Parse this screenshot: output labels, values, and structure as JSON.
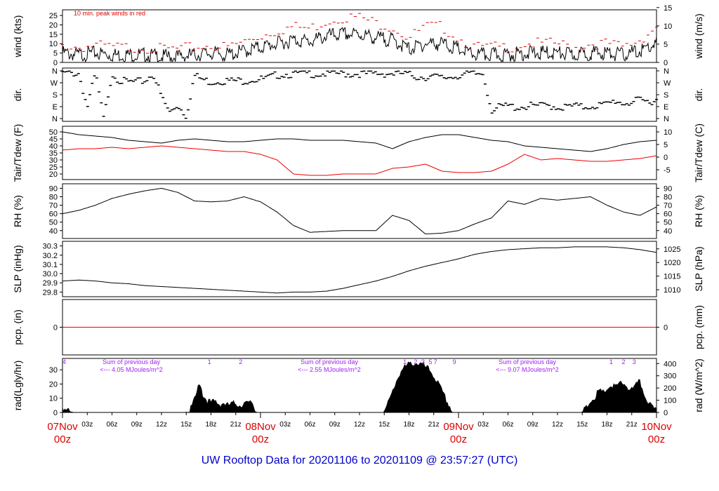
{
  "title": "UW Rooftop Data for 20201106  to  20201109 @ 23:57:27  (UTC)",
  "colors": {
    "primary": "#000000",
    "peak": "#dd0000",
    "dewpoint": "#ee0000",
    "annotation": "#a020f0",
    "title": "#0000cc"
  },
  "x_axis": {
    "hours": [
      0,
      72
    ],
    "day_labels": [
      {
        "hour": 0,
        "date": "07Nov",
        "time": "00z"
      },
      {
        "hour": 24,
        "date": "08Nov",
        "time": "00z"
      },
      {
        "hour": 48,
        "date": "09Nov",
        "time": "00z"
      },
      {
        "hour": 72,
        "date": "10Nov",
        "time": "00z"
      }
    ],
    "hour_ticks": [
      {
        "hour": 3,
        "label": "03z"
      },
      {
        "hour": 6,
        "label": "06z"
      },
      {
        "hour": 9,
        "label": "09z"
      },
      {
        "hour": 12,
        "label": "12z"
      },
      {
        "hour": 15,
        "label": "15z"
      },
      {
        "hour": 18,
        "label": "18z"
      },
      {
        "hour": 21,
        "label": "21z"
      },
      {
        "hour": 27,
        "label": "03z"
      },
      {
        "hour": 30,
        "label": "06z"
      },
      {
        "hour": 33,
        "label": "09z"
      },
      {
        "hour": 36,
        "label": "12z"
      },
      {
        "hour": 39,
        "label": "15z"
      },
      {
        "hour": 42,
        "label": "18z"
      },
      {
        "hour": 45,
        "label": "21z"
      },
      {
        "hour": 51,
        "label": "03z"
      },
      {
        "hour": 54,
        "label": "06z"
      },
      {
        "hour": 57,
        "label": "09z"
      },
      {
        "hour": 60,
        "label": "12z"
      },
      {
        "hour": 63,
        "label": "15z"
      },
      {
        "hour": 66,
        "label": "18z"
      },
      {
        "hour": 69,
        "label": "21z"
      }
    ]
  },
  "chart_data": [
    {
      "type": "line",
      "panel": "wind",
      "ylabel": "wind (kts)",
      "y2label": "wind (m/s)",
      "ylim": [
        0,
        28
      ],
      "yticks": [
        "0",
        "5",
        "10",
        "15",
        "20",
        "25"
      ],
      "y2ticks": [
        "0",
        "5",
        "10",
        "15"
      ],
      "note": "10 min. peak winds in red",
      "series": [
        {
          "hours": [
            0,
            2,
            4,
            6,
            8,
            10,
            12,
            14,
            16,
            18,
            20,
            22,
            24,
            26,
            28,
            30,
            32,
            34,
            36,
            38,
            40,
            42,
            44,
            46,
            48,
            50,
            52,
            54,
            56,
            58,
            60,
            62,
            64,
            66,
            68,
            70,
            72
          ],
          "values": [
            7,
            6,
            7,
            6,
            6,
            6,
            5,
            5,
            6,
            7,
            6,
            8,
            10,
            12,
            14,
            13,
            16,
            17,
            17,
            15,
            14,
            9,
            12,
            12,
            9,
            6,
            6,
            6,
            7,
            7,
            7,
            6,
            7,
            7,
            6,
            8,
            12
          ]
        }
      ],
      "peak_gusts": {
        "hours": [
          0,
          2,
          4,
          6,
          8,
          10,
          12,
          14,
          16,
          18,
          20,
          22,
          24,
          26,
          28,
          30,
          32,
          34,
          36,
          38,
          40,
          42,
          44,
          46,
          48,
          50,
          52,
          54,
          56,
          58,
          60,
          62,
          64,
          66,
          68,
          70,
          72
        ],
        "values": [
          10,
          9,
          10,
          9,
          9,
          9,
          8,
          8,
          9,
          10,
          9,
          12,
          15,
          18,
          20,
          19,
          23,
          25,
          25,
          22,
          20,
          14,
          20,
          20,
          14,
          9,
          9,
          9,
          11,
          11,
          11,
          9,
          11,
          11,
          9,
          13,
          20
        ]
      }
    },
    {
      "type": "scatter",
      "panel": "dir",
      "ylabel": "dir.",
      "y2label": "dir.",
      "ylim": [
        0,
        360
      ],
      "yticks": [
        "N",
        "E",
        "S",
        "W",
        "N"
      ],
      "y2ticks": [
        "N",
        "E",
        "S",
        "W",
        "N"
      ],
      "series": [
        {
          "hours": [
            0,
            1,
            2,
            3,
            4,
            5,
            6,
            7,
            8,
            9,
            10,
            11,
            12,
            13,
            14,
            15,
            16,
            17,
            18,
            19,
            20,
            21,
            22,
            23,
            24,
            25,
            26,
            27,
            28,
            29,
            30,
            31,
            32,
            33,
            34,
            35,
            36,
            37,
            38,
            39,
            40,
            41,
            42,
            43,
            44,
            45,
            46,
            47,
            48,
            49,
            50,
            51,
            52,
            53,
            54,
            55,
            56,
            57,
            58,
            59,
            60,
            61,
            62,
            63,
            64,
            65,
            66,
            67,
            68,
            69,
            70,
            71,
            72
          ],
          "values": [
            355,
            358,
            355,
            100,
            355,
            10,
            355,
            300,
            290,
            290,
            300,
            355,
            180,
            60,
            120,
            30,
            340,
            310,
            290,
            300,
            300,
            300,
            300,
            310,
            310,
            320,
            345,
            350,
            350,
            355,
            355,
            350,
            355,
            355,
            355,
            350,
            355,
            350,
            355,
            355,
            355,
            355,
            345,
            330,
            330,
            330,
            320,
            330,
            340,
            350,
            350,
            355,
            80,
            100,
            110,
            100,
            105,
            110,
            110,
            115,
            100,
            100,
            110,
            100,
            110,
            115,
            120,
            150,
            130,
            140,
            150,
            140,
            160
          ]
        }
      ]
    },
    {
      "type": "line",
      "panel": "temp",
      "ylabel": "Tair/Tdew (F)",
      "y2label": "Tair/Tdew (C)",
      "ylim": [
        18,
        52
      ],
      "yticks": [
        "20",
        "25",
        "30",
        "35",
        "40",
        "45",
        "50"
      ],
      "y2ticks": [
        "-5",
        "0",
        "5",
        "10"
      ],
      "series": [
        {
          "name": "Tair",
          "hours": [
            0,
            2,
            4,
            6,
            8,
            10,
            12,
            14,
            16,
            18,
            20,
            22,
            24,
            26,
            28,
            30,
            32,
            34,
            36,
            38,
            40,
            42,
            44,
            46,
            48,
            50,
            52,
            54,
            56,
            58,
            60,
            62,
            64,
            66,
            68,
            70,
            72
          ],
          "values": [
            50,
            48,
            47,
            46,
            44,
            43,
            42,
            44,
            45,
            44,
            43,
            43,
            44,
            45,
            45,
            44,
            44,
            44,
            43,
            42,
            38,
            43,
            46,
            48,
            48,
            46,
            44,
            43,
            40,
            39,
            38,
            37,
            36,
            38,
            41,
            43,
            44
          ]
        },
        {
          "name": "Tdew",
          "hours": [
            0,
            2,
            4,
            6,
            8,
            10,
            12,
            14,
            16,
            18,
            20,
            22,
            24,
            26,
            28,
            30,
            32,
            34,
            36,
            38,
            40,
            42,
            44,
            46,
            48,
            50,
            52,
            54,
            56,
            58,
            60,
            62,
            64,
            66,
            68,
            70,
            72
          ],
          "values": [
            37,
            38,
            38,
            39,
            38,
            39,
            40,
            39,
            38,
            37,
            36,
            36,
            34,
            30,
            20,
            19,
            19,
            20,
            20,
            20,
            24,
            25,
            27,
            22,
            21,
            21,
            22,
            27,
            34,
            30,
            31,
            30,
            29,
            29,
            30,
            31,
            33
          ]
        }
      ]
    },
    {
      "type": "line",
      "panel": "rh",
      "ylabel": "RH (%)",
      "y2label": "RH (%)",
      "ylim": [
        34,
        92
      ],
      "yticks": [
        "40",
        "50",
        "60",
        "70",
        "80",
        "90"
      ],
      "y2ticks": [
        "40",
        "50",
        "60",
        "70",
        "80",
        "90"
      ],
      "series": [
        {
          "hours": [
            0,
            2,
            4,
            6,
            8,
            10,
            12,
            14,
            16,
            18,
            20,
            22,
            24,
            26,
            28,
            30,
            32,
            34,
            36,
            38,
            40,
            42,
            44,
            46,
            48,
            50,
            52,
            54,
            56,
            58,
            60,
            62,
            64,
            66,
            68,
            70,
            72
          ],
          "values": [
            60,
            64,
            70,
            78,
            83,
            87,
            90,
            85,
            75,
            74,
            75,
            80,
            74,
            62,
            46,
            38,
            39,
            40,
            40,
            40,
            58,
            52,
            36,
            37,
            40,
            48,
            55,
            75,
            71,
            78,
            76,
            78,
            80,
            70,
            62,
            58,
            68
          ]
        }
      ]
    },
    {
      "type": "line",
      "panel": "slp",
      "ylabel": "SLP (inHg)",
      "y2label": "SLP (hPa)",
      "ylim": [
        29.78,
        30.32
      ],
      "yticks": [
        "29.8",
        "29.9",
        "30.0",
        "30.1",
        "30.2",
        "30.3"
      ],
      "y2ticks": [
        "1010",
        "1015",
        "1020",
        "1025"
      ],
      "series": [
        {
          "hours": [
            0,
            2,
            4,
            6,
            8,
            10,
            12,
            14,
            16,
            18,
            20,
            22,
            24,
            26,
            28,
            30,
            32,
            34,
            36,
            38,
            40,
            42,
            44,
            46,
            48,
            50,
            52,
            54,
            56,
            58,
            60,
            62,
            64,
            66,
            68,
            70,
            72
          ],
          "values": [
            29.92,
            29.93,
            29.92,
            29.9,
            29.89,
            29.87,
            29.86,
            29.85,
            29.84,
            29.83,
            29.82,
            29.81,
            29.8,
            29.79,
            29.8,
            29.8,
            29.81,
            29.84,
            29.88,
            29.92,
            29.97,
            30.03,
            30.08,
            30.12,
            30.16,
            30.21,
            30.24,
            30.26,
            30.27,
            30.28,
            30.28,
            30.29,
            30.29,
            30.29,
            30.28,
            30.26,
            30.23
          ]
        }
      ]
    },
    {
      "type": "line",
      "panel": "pcp",
      "ylabel": "pcp. (in)",
      "y2label": "pcp. (mm)",
      "ylim": [
        -1,
        1
      ],
      "yticks": [
        "0"
      ],
      "y2ticks": [
        "0"
      ],
      "series": [
        {
          "hours": [
            0,
            72
          ],
          "values": [
            0,
            0
          ]
        }
      ]
    },
    {
      "type": "area",
      "panel": "rad",
      "ylabel": "rad(Lgly/hr)",
      "y2label": "rad (W/m^2)",
      "ylim": [
        0,
        38
      ],
      "yticks": [
        "0",
        "10",
        "20",
        "30"
      ],
      "y2ticks": [
        "0",
        "100",
        "200",
        "300",
        "400"
      ],
      "series": [
        {
          "hours": [
            0,
            0.5,
            1,
            1.5,
            14.9,
            15.5,
            16,
            16.4,
            16.7,
            17,
            17.5,
            18,
            18.5,
            19,
            19.5,
            20,
            20.5,
            21,
            21.5,
            22,
            22.5,
            23,
            23.3,
            23.5,
            38.9,
            39.5,
            40,
            40.5,
            41,
            41.5,
            42,
            42.5,
            43,
            43.5,
            44,
            44.5,
            45,
            45.5,
            46,
            46.5,
            47,
            47.2,
            47.5,
            62.9,
            63.2,
            63.6,
            64,
            64.5,
            65,
            65.5,
            66,
            66.5,
            67,
            67.5,
            68,
            68.5,
            69,
            69.5,
            70,
            70.5,
            71,
            71.5,
            72
          ],
          "values": [
            5,
            3,
            0.5,
            0,
            0,
            3,
            10,
            18,
            22,
            14,
            10,
            8,
            9,
            7,
            8,
            6,
            7,
            8,
            6,
            8,
            7,
            9,
            3,
            0,
            0,
            8,
            16,
            24,
            30,
            33,
            35,
            36,
            36,
            35,
            33,
            31,
            27,
            22,
            16,
            10,
            5,
            2,
            0,
            0,
            3,
            5,
            10,
            12,
            16,
            15,
            18,
            20,
            19,
            21,
            22,
            19,
            17,
            20,
            23,
            14,
            9,
            4,
            2
          ]
        }
      ],
      "annotations": [
        {
          "hour": 0.2,
          "text": "4"
        },
        {
          "hour": 17.8,
          "text": "1"
        },
        {
          "hour": 21.6,
          "text": "2"
        },
        {
          "hour": 41.5,
          "text": "1"
        },
        {
          "hour": 42.8,
          "text": "2"
        },
        {
          "hour": 43.7,
          "text": "3"
        },
        {
          "hour": 44.6,
          "text": "5"
        },
        {
          "hour": 45.2,
          "text": "7"
        },
        {
          "hour": 47.5,
          "text": "9"
        },
        {
          "hour": 66.5,
          "text": "1"
        },
        {
          "hour": 68.0,
          "text": "2"
        },
        {
          "hour": 69.3,
          "text": "3"
        }
      ],
      "daily_sums": [
        {
          "hour": 8,
          "line1": "Sum of previous day",
          "line2": "<--- 4.05 MJoules/m^2"
        },
        {
          "hour": 32,
          "line1": "Sum of previous day",
          "line2": "<--- 2.55 MJoules/m^2"
        },
        {
          "hour": 56,
          "line1": "Sum of previous day",
          "line2": "<--- 9.07 MJoules/m^2"
        }
      ]
    }
  ]
}
